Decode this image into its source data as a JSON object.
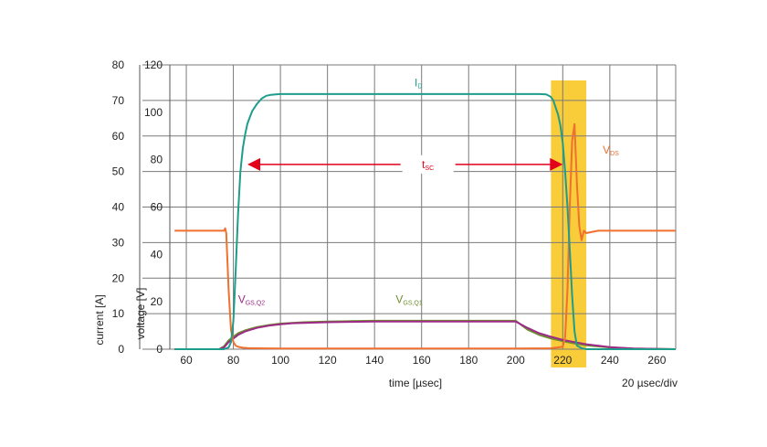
{
  "chart_data": {
    "type": "line",
    "xlabel": "time [µsec]",
    "x_ticks": [
      60,
      80,
      100,
      120,
      140,
      160,
      180,
      200,
      220,
      240,
      260
    ],
    "xlim": [
      53,
      268
    ],
    "scale_note": "20 µsec/div",
    "y_axes": [
      {
        "label": "current [A]",
        "ticks": [
          0,
          10,
          20,
          30,
          40,
          50,
          60,
          70,
          80
        ],
        "ylim": [
          0,
          80
        ]
      },
      {
        "label": "voltage [V]",
        "ticks": [
          0,
          20,
          40,
          60,
          80,
          100,
          120
        ],
        "ylim": [
          0,
          120
        ]
      }
    ],
    "grid": true,
    "highlight": {
      "x_from": 215,
      "x_to": 230,
      "color": "#f9c928"
    },
    "annotation": {
      "text": "t",
      "subscript": "SC",
      "x_from": 86,
      "x_to": 220,
      "y": 52,
      "color": "#e2001a"
    },
    "series": [
      {
        "name": "I",
        "name_sub": "D",
        "axis": "current",
        "color": "#1f9d8c",
        "x": [
          55,
          76,
          78,
          79,
          80,
          81,
          82,
          83,
          84,
          85,
          86,
          88,
          90,
          92,
          94,
          96,
          98,
          100,
          105,
          110,
          120,
          150,
          180,
          210,
          213,
          215,
          216,
          217,
          218,
          219,
          220,
          221,
          222,
          223,
          224,
          225,
          226,
          228,
          230,
          240,
          268
        ],
        "y": [
          0,
          0,
          0.5,
          2,
          8,
          22,
          38,
          50,
          56.5,
          60.5,
          63.5,
          67,
          69,
          70.5,
          71.3,
          71.6,
          71.7,
          71.8,
          71.8,
          71.8,
          71.8,
          71.8,
          71.8,
          71.8,
          71.7,
          71,
          70,
          68,
          66,
          63,
          58,
          50,
          40,
          28,
          15,
          5,
          1,
          0.3,
          0,
          0,
          0
        ],
        "label_at": {
          "x": 157,
          "y": 74
        }
      },
      {
        "name": "V",
        "name_sub": "DS",
        "axis": "voltage",
        "color": "#f07030",
        "x": [
          55,
          76,
          76.5,
          77,
          78,
          79,
          80,
          81,
          82,
          84,
          86,
          90,
          100,
          150,
          200,
          215,
          220,
          221,
          222,
          223,
          224,
          225,
          226,
          227,
          228,
          229,
          230,
          235,
          268
        ],
        "y": [
          50,
          50,
          51,
          49,
          25,
          8,
          3,
          1.5,
          1,
          0.6,
          0.5,
          0.4,
          0.3,
          0.3,
          0.3,
          0.4,
          1,
          5,
          25,
          60,
          88,
          95,
          70,
          52,
          46,
          50,
          49,
          50,
          50
        ],
        "label_at": {
          "x": 237,
          "y": 55
        }
      },
      {
        "name": "V",
        "name_sub": "GS,Q2",
        "axis": "current",
        "color": "#9c2a86",
        "x": [
          55,
          74,
          76,
          78,
          80,
          82,
          85,
          90,
          95,
          100,
          105,
          110,
          120,
          130,
          140,
          150,
          170,
          190,
          200,
          205,
          210,
          215,
          220,
          225,
          230,
          240,
          250,
          268
        ],
        "y": [
          0,
          0,
          0.5,
          2,
          3,
          4,
          5,
          6,
          6.6,
          7,
          7.3,
          7.4,
          7.6,
          7.7,
          7.8,
          7.8,
          7.8,
          7.8,
          7.8,
          6,
          4.5,
          3.5,
          2.6,
          2,
          1.4,
          0.6,
          0.2,
          0
        ],
        "label_at": {
          "x": 82,
          "y": 13
        }
      },
      {
        "name": "V",
        "name_sub": "GS,Q1",
        "axis": "current",
        "color": "#6e8e2e",
        "x": [
          55,
          74,
          76,
          78,
          80,
          82,
          85,
          90,
          95,
          100,
          105,
          110,
          120,
          130,
          140,
          150,
          170,
          190,
          200,
          205,
          210,
          215,
          220,
          225,
          230,
          240,
          250,
          268
        ],
        "y": [
          0,
          0,
          0.8,
          2.5,
          3.5,
          4.5,
          5.3,
          6.2,
          6.8,
          7.2,
          7.4,
          7.6,
          7.8,
          7.9,
          8,
          8,
          8,
          8,
          8,
          5.5,
          4,
          3,
          2.3,
          1.6,
          1.1,
          0.5,
          0.2,
          0
        ],
        "label_at": {
          "x": 149,
          "y": 13
        }
      }
    ]
  }
}
